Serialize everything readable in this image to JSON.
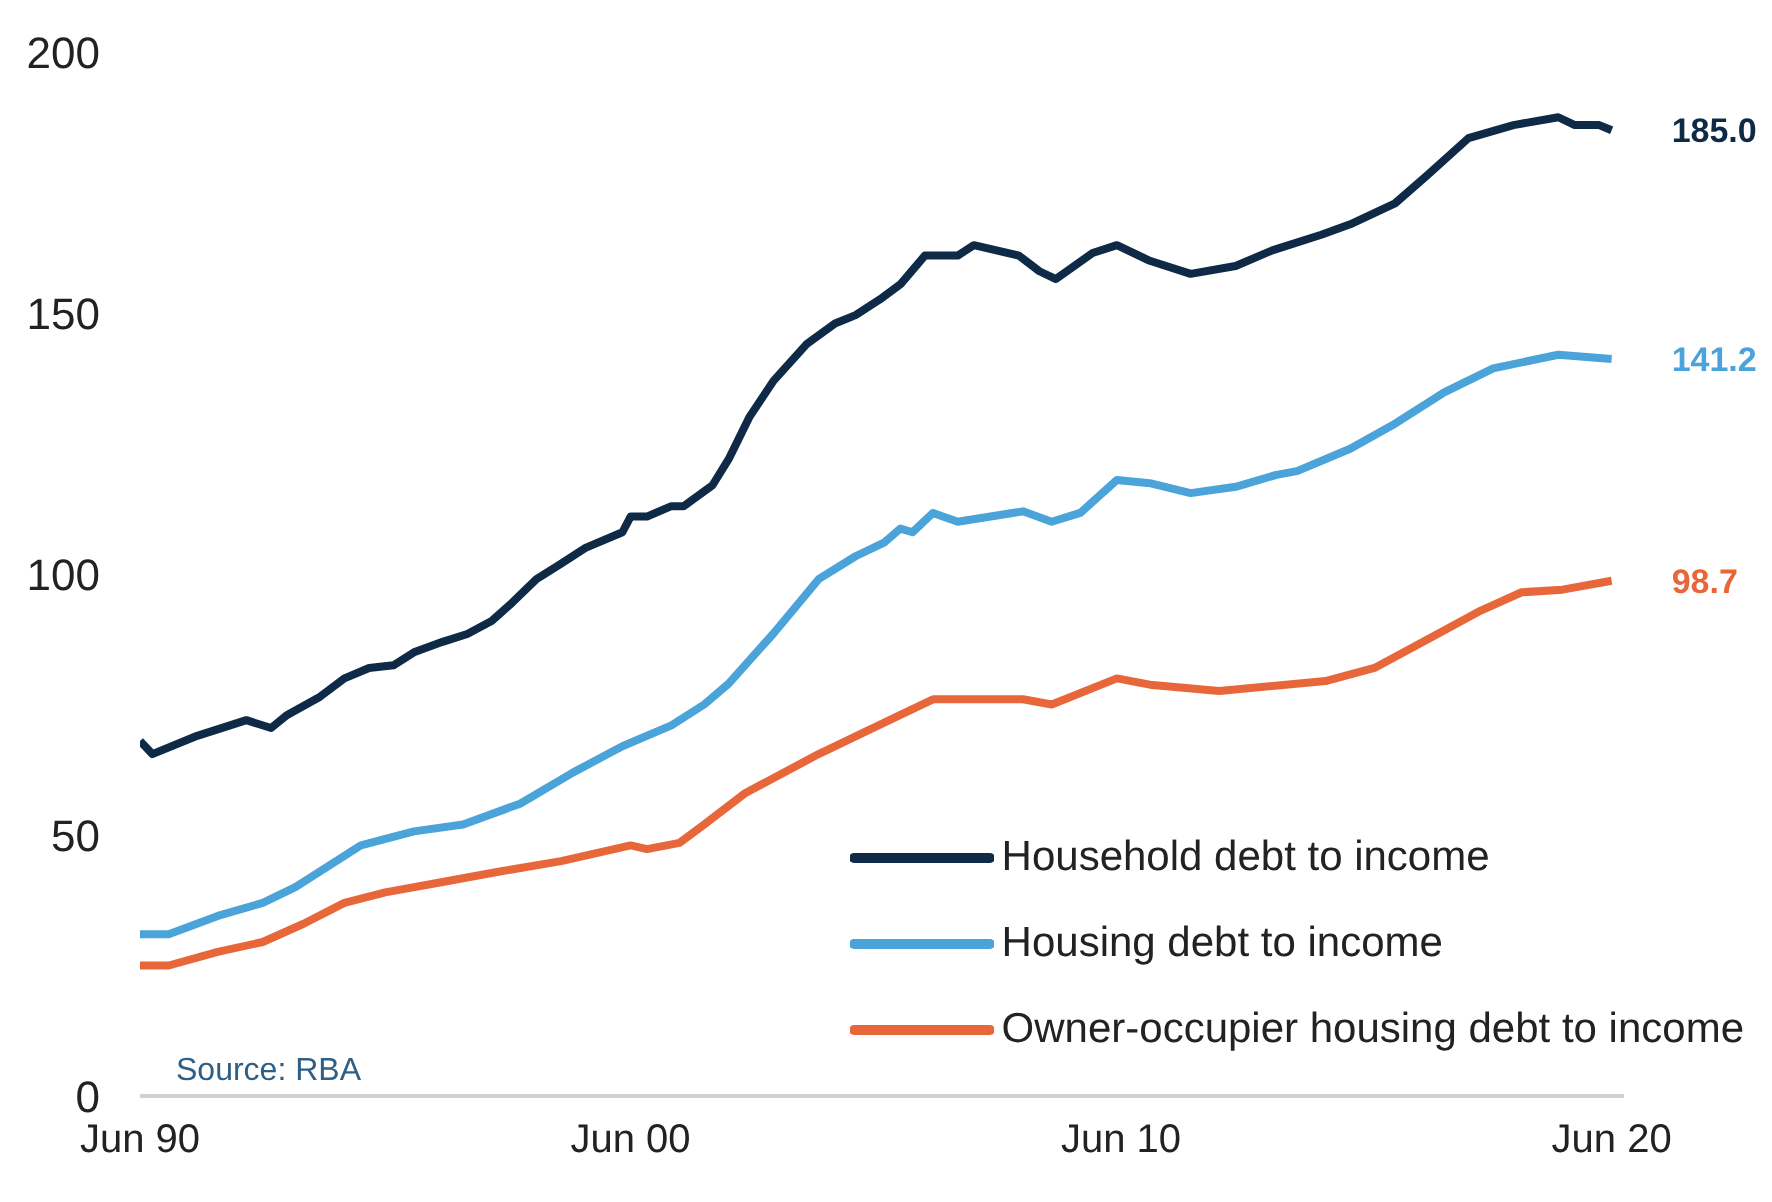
{
  "chart_data": {
    "type": "line",
    "xlim": [
      "1990-06",
      "2020-09"
    ],
    "xticks": [
      {
        "value": "1990-06",
        "label": "Jun 90"
      },
      {
        "value": "2000-06",
        "label": "Jun 00"
      },
      {
        "value": "2010-06",
        "label": "Jun 10"
      },
      {
        "value": "2020-06",
        "label": "Jun 20"
      }
    ],
    "ylim": [
      0,
      200
    ],
    "yticks": [
      0,
      50,
      100,
      150,
      200
    ],
    "grid": false,
    "legend": "bottom right",
    "annotations": [
      "Source: RBA"
    ],
    "series": [
      {
        "name": "Household debt to income",
        "color": "#0f2a47",
        "x": [
          "1990-06",
          "1990-09",
          "1991-08",
          "1992-08",
          "1993-02",
          "1993-06",
          "1994-02",
          "1994-08",
          "1995-02",
          "1995-08",
          "1996-01",
          "1996-08",
          "1997-02",
          "1997-08",
          "1998-01",
          "1998-07",
          "1999-01",
          "1999-07",
          "2000-04",
          "2000-06",
          "2000-10",
          "2001-04",
          "2001-07",
          "2002-02",
          "2002-06",
          "2002-11",
          "2003-05",
          "2004-01",
          "2004-08",
          "2005-01",
          "2005-07",
          "2005-12",
          "2006-06",
          "2007-02",
          "2007-06",
          "2008-05",
          "2008-10",
          "2009-02",
          "2009-11",
          "2010-05",
          "2011-01",
          "2011-11",
          "2012-10",
          "2013-07",
          "2014-07",
          "2015-02",
          "2016-01",
          "2016-09",
          "2017-07",
          "2018-06",
          "2019-05",
          "2019-09",
          "2020-03",
          "2020-06"
        ],
        "values": [
          68,
          65.5,
          69,
          72,
          70.5,
          73,
          76.5,
          80,
          82,
          82.5,
          85,
          87,
          88.5,
          91,
          94.5,
          99,
          102,
          105,
          108,
          111,
          111,
          113,
          113,
          117,
          122,
          130,
          137,
          144,
          148,
          149.6,
          152.6,
          155.5,
          161,
          161,
          163,
          161,
          158,
          156.5,
          161.5,
          163,
          160,
          157.5,
          159,
          162,
          165,
          167,
          171,
          176.5,
          183.5,
          186,
          187.5,
          186,
          186,
          185.0
        ],
        "value_labels": [
          null,
          null,
          null,
          null,
          null,
          null,
          null,
          null,
          null,
          null,
          null,
          null,
          null,
          null,
          null,
          null,
          null,
          null,
          null,
          null,
          null,
          null,
          null,
          null,
          null,
          null,
          null,
          null,
          null,
          null,
          null,
          null,
          null,
          null,
          null,
          null,
          null,
          null,
          null,
          null,
          null,
          null,
          null,
          null,
          null,
          null,
          null,
          null,
          null,
          null,
          null,
          null,
          null,
          "185.0"
        ]
      },
      {
        "name": "Housing debt to income",
        "color": "#4aa3d9",
        "x": [
          "1990-06",
          "1991-01",
          "1992-01",
          "1992-12",
          "1993-08",
          "1994-12",
          "1996-01",
          "1997-01",
          "1998-03",
          "1999-04",
          "2000-04",
          "2001-04",
          "2001-12",
          "2002-06",
          "2003-05",
          "2004-04",
          "2005-01",
          "2005-08",
          "2005-12",
          "2006-03",
          "2006-08",
          "2007-02",
          "2008-06",
          "2009-01",
          "2009-08",
          "2010-05",
          "2011-01",
          "2011-11",
          "2012-10",
          "2013-08",
          "2014-01",
          "2015-02",
          "2016-01",
          "2017-01",
          "2018-01",
          "2019-05",
          "2020-06"
        ],
        "values": [
          31,
          31,
          34.5,
          37,
          40,
          48,
          50.7,
          52,
          56,
          62,
          67,
          71,
          75,
          79,
          88.6,
          99,
          103.4,
          106,
          108.7,
          108,
          111.7,
          110,
          112,
          110,
          111.7,
          118,
          117.4,
          115.5,
          116.7,
          119,
          119.7,
          124,
          128.8,
          134.8,
          139.4,
          142,
          141.2
        ],
        "value_labels": [
          null,
          null,
          null,
          null,
          null,
          null,
          null,
          null,
          null,
          null,
          null,
          null,
          null,
          null,
          null,
          null,
          null,
          null,
          null,
          null,
          null,
          null,
          null,
          null,
          null,
          null,
          null,
          null,
          null,
          null,
          null,
          null,
          null,
          null,
          null,
          null,
          "141.2"
        ]
      },
      {
        "name": "Owner-occupier housing debt to income",
        "color": "#e8673a",
        "x": [
          "1990-06",
          "1991-01",
          "1992-01",
          "1992-12",
          "1993-10",
          "1994-08",
          "1995-06",
          "1996-08",
          "1997-10",
          "1999-01",
          "2000-06",
          "2000-10",
          "2001-06",
          "2001-12",
          "2002-10",
          "2004-04",
          "2005-12",
          "2006-08",
          "2008-06",
          "2009-01",
          "2010-05",
          "2011-01",
          "2012-06",
          "2014-08",
          "2015-08",
          "2016-09",
          "2017-10",
          "2018-08",
          "2019-06",
          "2020-06"
        ],
        "values": [
          25,
          25,
          27.6,
          29.5,
          33,
          37,
          39,
          41,
          43,
          45,
          48,
          47.3,
          48.5,
          52,
          58,
          65.5,
          73,
          76,
          76,
          75,
          80,
          78.8,
          77.6,
          79.5,
          82,
          87.5,
          93,
          96.5,
          97,
          98.7
        ],
        "value_labels": [
          null,
          null,
          null,
          null,
          null,
          null,
          null,
          null,
          null,
          null,
          null,
          null,
          null,
          null,
          null,
          null,
          null,
          null,
          null,
          null,
          null,
          null,
          null,
          null,
          null,
          null,
          null,
          null,
          null,
          "98.7"
        ]
      }
    ]
  }
}
